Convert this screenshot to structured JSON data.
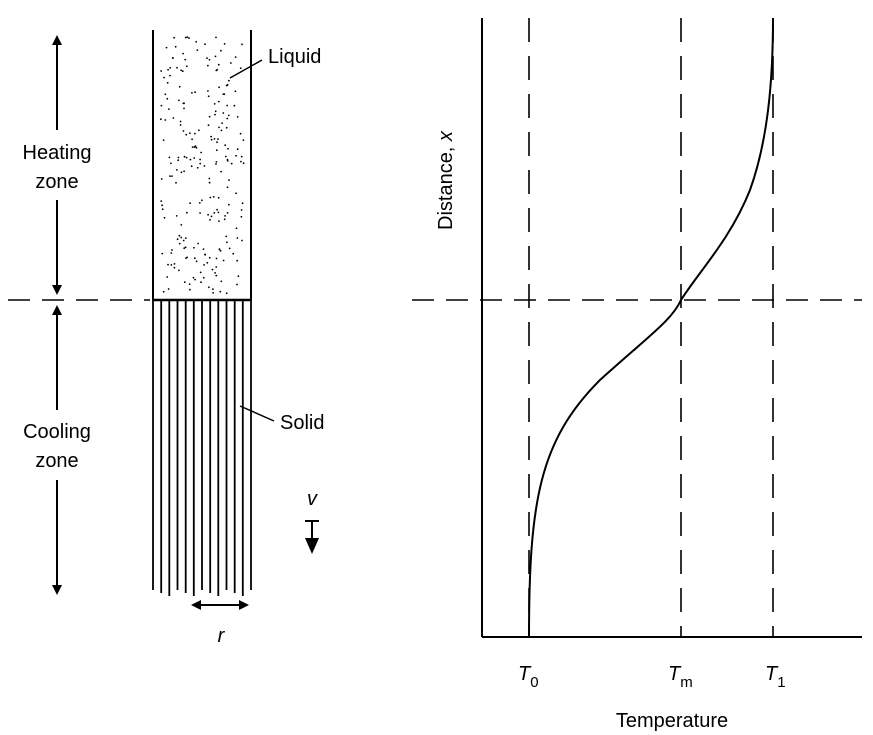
{
  "left_diagram": {
    "liquid_label": "Liquid",
    "solid_label": "Solid",
    "heating_zone_label": [
      "Heating",
      "zone"
    ],
    "cooling_zone_label": [
      "Cooling",
      "zone"
    ],
    "velocity_symbol": "v",
    "spacing_symbol": "r"
  },
  "right_plot": {
    "y_axis_label_text": "Distance, ",
    "y_axis_label_var": "x",
    "x_axis_label": "Temperature",
    "t0": {
      "main": "T",
      "sub": "0"
    },
    "tm": {
      "main": "T",
      "sub": "m"
    },
    "t1": {
      "main": "T",
      "sub": "1"
    }
  },
  "chart_data": {
    "type": "line",
    "title": "",
    "xlabel": "Temperature",
    "ylabel": "Distance, x",
    "x_tick_labels": [
      "T0",
      "Tm",
      "T1"
    ],
    "reference_lines": {
      "vertical": [
        "T0",
        "Tm",
        "T1"
      ],
      "horizontal": "interface between heating and cooling zones"
    },
    "series": [
      {
        "description_shape": "S-shaped profile rising from T0 at the bottom, crossing Tm at the interface, approaching T1 at the top"
      }
    ],
    "grid": false
  }
}
